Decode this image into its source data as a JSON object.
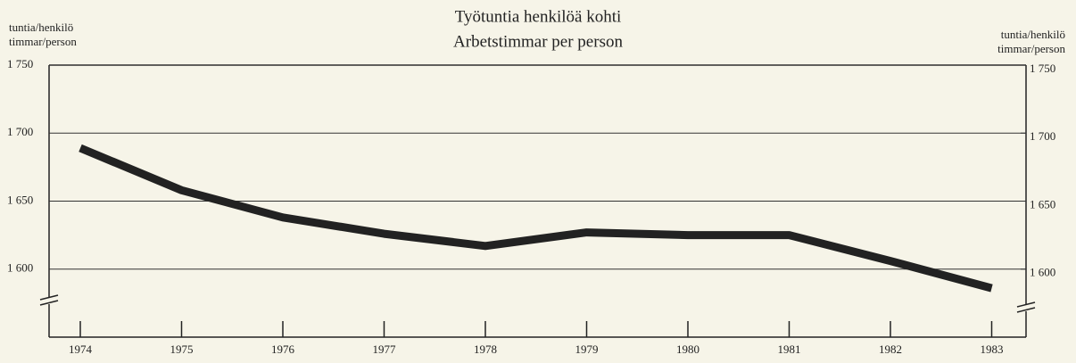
{
  "chart_data": {
    "type": "line",
    "title": [
      "Työtuntia henkilöä kohti",
      "Arbetstimmar per person"
    ],
    "y_label": [
      "tuntia/henkilö",
      "timmar/person"
    ],
    "y2_label": [
      "tuntia/henkilö",
      "timmar/person"
    ],
    "categories": [
      "1974",
      "1975",
      "1976",
      "1977",
      "1978",
      "1979",
      "1980",
      "1981",
      "1982",
      "1983"
    ],
    "series": [
      {
        "color": "#222222",
        "values": [
          1689,
          1658,
          1638,
          1626,
          1617,
          1627,
          1625,
          1625,
          1606,
          1586
        ]
      }
    ],
    "ylim": [
      1550,
      1750
    ],
    "yticks": [
      {
        "value": 1600,
        "label": "1 600"
      },
      {
        "value": 1650,
        "label": "1 650"
      },
      {
        "value": 1700,
        "label": "1 700"
      },
      {
        "value": 1750,
        "label": "1 750"
      }
    ],
    "y2lim": [
      1550,
      1750
    ],
    "y2ticks": [
      {
        "value": 1600,
        "label": "1 600"
      },
      {
        "value": 1650,
        "label": "1 650"
      },
      {
        "value": 1700,
        "label": "1 700"
      },
      {
        "value": 1750,
        "label": "1 750"
      }
    ],
    "grid": true
  }
}
